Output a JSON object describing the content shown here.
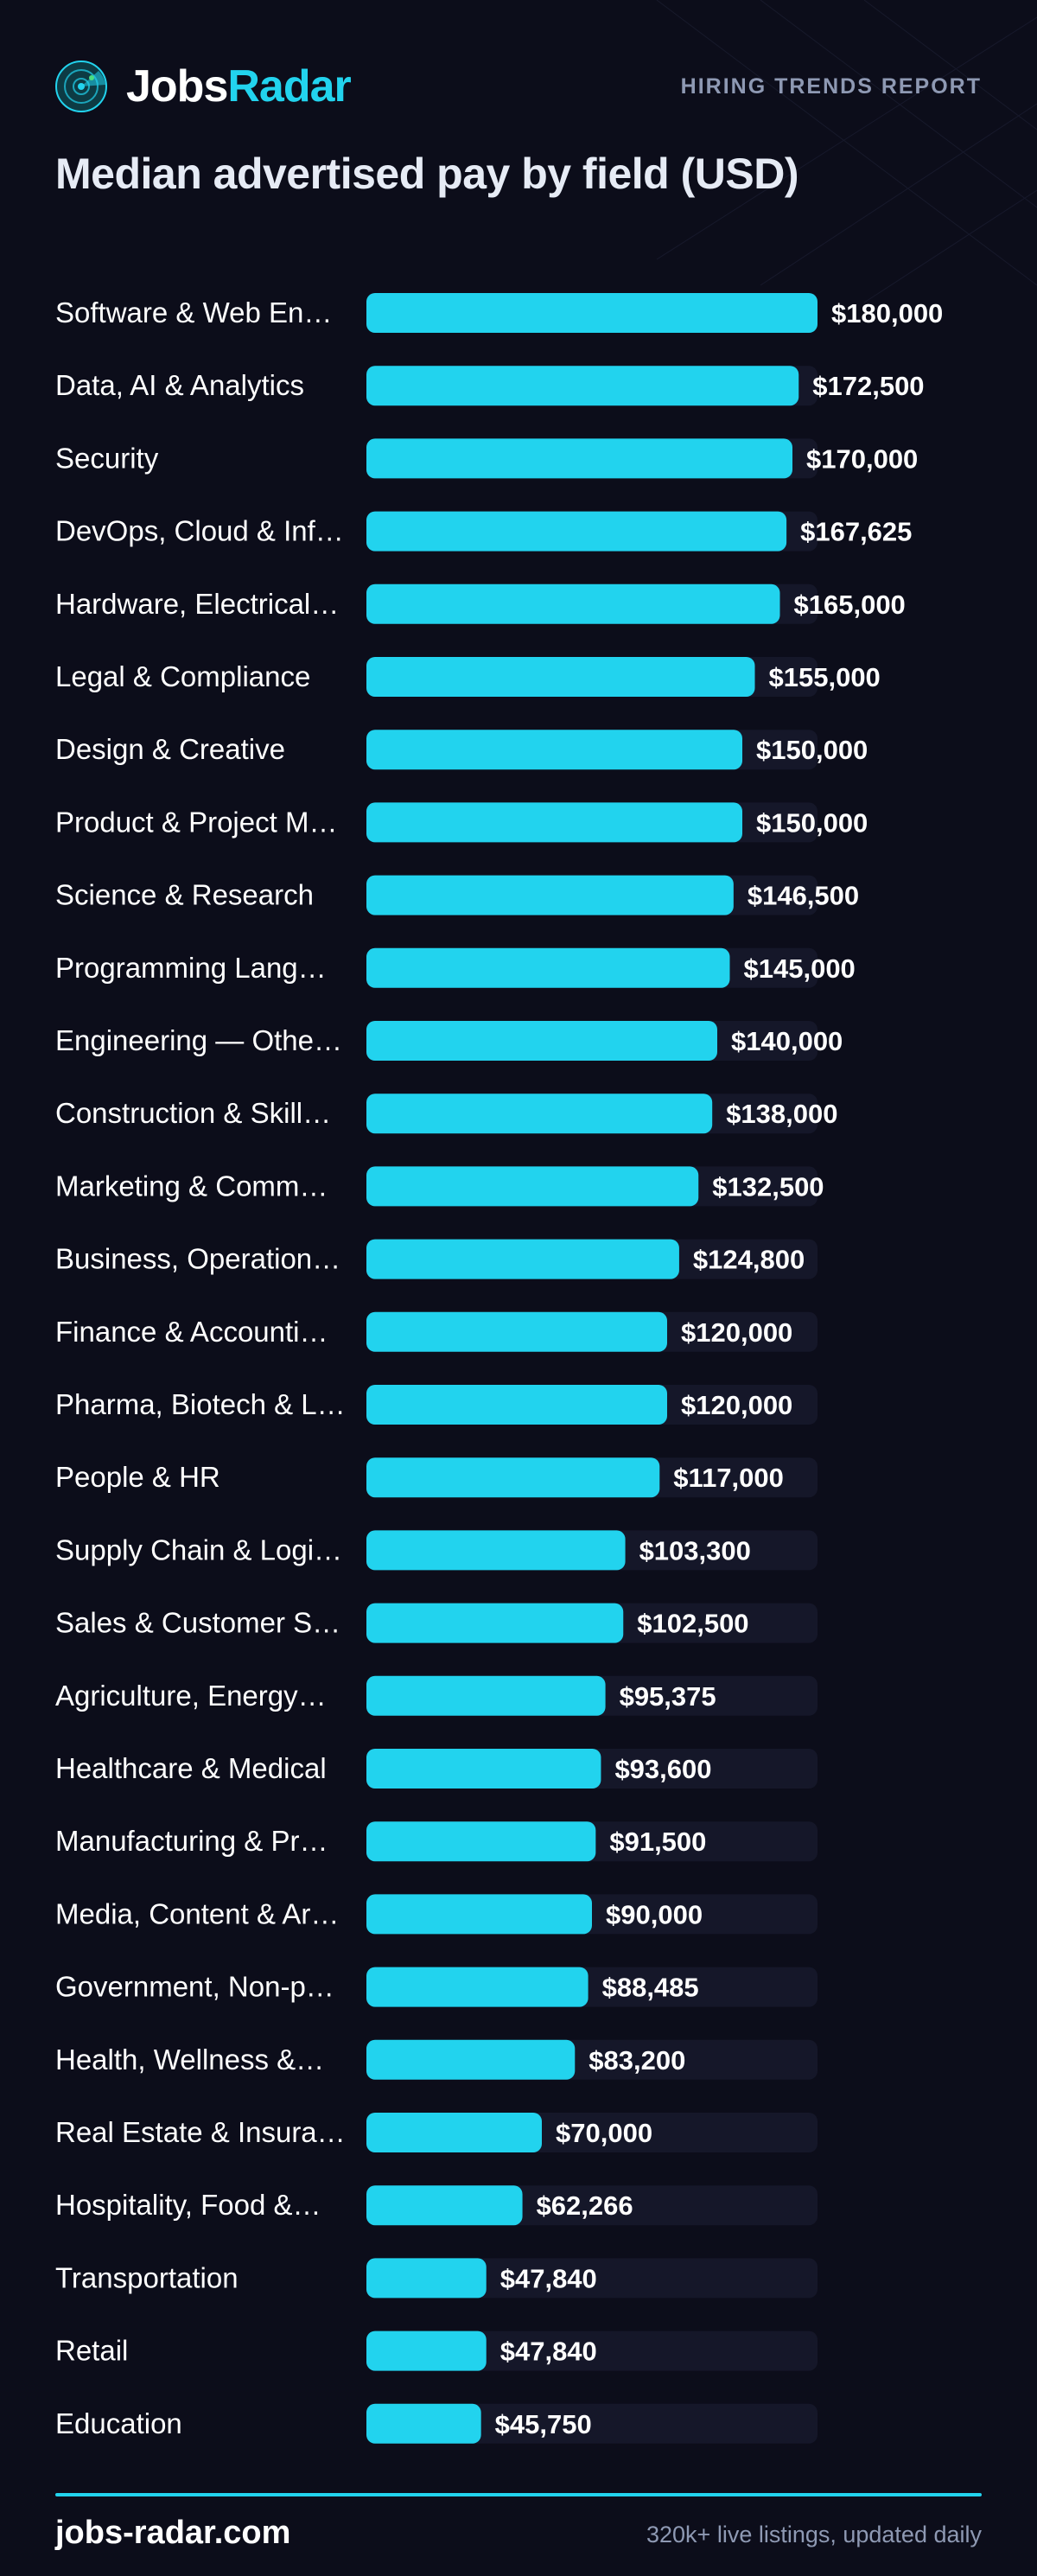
{
  "brand": {
    "name_part1": "Jobs",
    "name_part2": "Radar",
    "tag": "HIRING TRENDS REPORT",
    "accent_color": "#22d3ee",
    "logo_icon": "radar-icon"
  },
  "footer": {
    "url": "jobs-radar.com",
    "note": "320k+ live listings, updated daily"
  },
  "chart_data": {
    "type": "bar",
    "orientation": "horizontal",
    "title": "Median advertised pay by field (USD)",
    "xlim": [
      0,
      180000
    ],
    "grid": false,
    "bar_color": "#22d3ee",
    "track_color": "#151729",
    "categories": [
      "Software & Web En…",
      "Data, AI & Analytics",
      "Security",
      "DevOps, Cloud & Inf…",
      "Hardware, Electrical…",
      "Legal & Compliance",
      "Design & Creative",
      "Product & Project M…",
      "Science & Research",
      "Programming Lang…",
      "Engineering — Othe…",
      "Construction & Skill…",
      "Marketing & Comm…",
      "Business, Operation…",
      "Finance & Accounti…",
      "Pharma, Biotech & L…",
      "People & HR",
      "Supply Chain & Logi…",
      "Sales & Customer S…",
      "Agriculture, Energy…",
      "Healthcare & Medical",
      "Manufacturing & Pr…",
      "Media, Content & Ar…",
      "Government, Non-p…",
      "Health, Wellness &…",
      "Real Estate & Insura…",
      "Hospitality, Food &…",
      "Transportation",
      "Retail",
      "Education"
    ],
    "values": [
      180000,
      172500,
      170000,
      167625,
      165000,
      155000,
      150000,
      150000,
      146500,
      145000,
      140000,
      138000,
      132500,
      124800,
      120000,
      120000,
      117000,
      103300,
      102500,
      95375,
      93600,
      91500,
      90000,
      88485,
      83200,
      70000,
      62266,
      47840,
      47840,
      45750
    ],
    "value_labels": [
      "$180,000",
      "$172,500",
      "$170,000",
      "$167,625",
      "$165,000",
      "$155,000",
      "$150,000",
      "$150,000",
      "$146,500",
      "$145,000",
      "$140,000",
      "$138,000",
      "$132,500",
      "$124,800",
      "$120,000",
      "$120,000",
      "$117,000",
      "$103,300",
      "$102,500",
      "$95,375",
      "$93,600",
      "$91,500",
      "$90,000",
      "$88,485",
      "$83,200",
      "$70,000",
      "$62,266",
      "$47,840",
      "$47,840",
      "$45,750"
    ]
  }
}
